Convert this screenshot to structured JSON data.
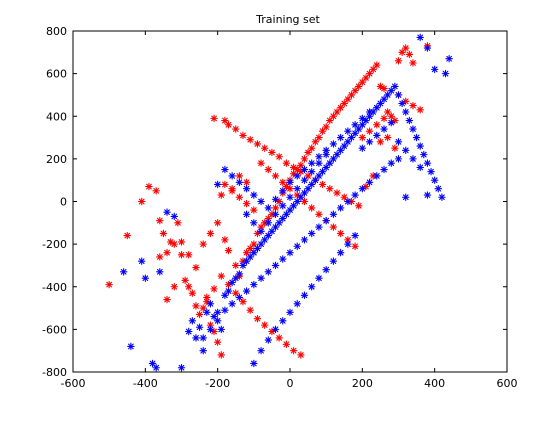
{
  "chart_data": {
    "type": "scatter",
    "title": "Training set",
    "xlabel": "",
    "ylabel": "",
    "xlim": [
      -600,
      600
    ],
    "ylim": [
      -800,
      800
    ],
    "xticks": [
      -600,
      -400,
      -200,
      0,
      200,
      400,
      600
    ],
    "yticks": [
      -800,
      -600,
      -400,
      -200,
      0,
      200,
      400,
      600,
      800
    ],
    "grid": false,
    "legend": "none",
    "marker": "*",
    "series": [
      {
        "color": "#ff0000",
        "points": [
          [
            -500,
            -390
          ],
          [
            -450,
            -160
          ],
          [
            -410,
            0
          ],
          [
            -390,
            70
          ],
          [
            -370,
            50
          ],
          [
            -360,
            -90
          ],
          [
            -350,
            -150
          ],
          [
            -330,
            -190
          ],
          [
            -320,
            -200
          ],
          [
            -310,
            -100
          ],
          [
            -300,
            -250
          ],
          [
            -290,
            -370
          ],
          [
            -280,
            -400
          ],
          [
            -270,
            -430
          ],
          [
            -260,
            -490
          ],
          [
            -250,
            -530
          ],
          [
            -240,
            -500
          ],
          [
            -230,
            -470
          ],
          [
            -220,
            -580
          ],
          [
            -210,
            -610
          ],
          [
            -200,
            -660
          ],
          [
            -190,
            -720
          ],
          [
            -360,
            -260
          ],
          [
            -340,
            -240
          ],
          [
            -200,
            -100
          ],
          [
            -180,
            -180
          ],
          [
            -170,
            -230
          ],
          [
            -150,
            -300
          ],
          [
            -140,
            -350
          ],
          [
            -130,
            -280
          ],
          [
            -120,
            -240
          ],
          [
            -110,
            -220
          ],
          [
            -100,
            -200
          ],
          [
            -90,
            -150
          ],
          [
            -80,
            -120
          ],
          [
            -70,
            -100
          ],
          [
            -60,
            -80
          ],
          [
            -50,
            -60
          ],
          [
            -40,
            -30
          ],
          [
            -30,
            0
          ],
          [
            -20,
            40
          ],
          [
            -10,
            70
          ],
          [
            0,
            100
          ],
          [
            10,
            130
          ],
          [
            20,
            150
          ],
          [
            30,
            170
          ],
          [
            40,
            200
          ],
          [
            50,
            230
          ],
          [
            60,
            250
          ],
          [
            70,
            280
          ],
          [
            80,
            300
          ],
          [
            90,
            330
          ],
          [
            100,
            350
          ],
          [
            110,
            380
          ],
          [
            120,
            400
          ],
          [
            130,
            420
          ],
          [
            140,
            440
          ],
          [
            150,
            460
          ],
          [
            160,
            480
          ],
          [
            170,
            500
          ],
          [
            180,
            520
          ],
          [
            190,
            540
          ],
          [
            200,
            560
          ],
          [
            210,
            580
          ],
          [
            220,
            600
          ],
          [
            230,
            620
          ],
          [
            240,
            640
          ],
          [
            250,
            540
          ],
          [
            260,
            530
          ],
          [
            270,
            420
          ],
          [
            280,
            400
          ],
          [
            290,
            380
          ],
          [
            300,
            660
          ],
          [
            310,
            700
          ],
          [
            320,
            720
          ],
          [
            330,
            690
          ],
          [
            340,
            650
          ],
          [
            380,
            730
          ],
          [
            -210,
            390
          ],
          [
            -180,
            380
          ],
          [
            -170,
            360
          ],
          [
            -150,
            340
          ],
          [
            -130,
            310
          ],
          [
            -110,
            290
          ],
          [
            -90,
            270
          ],
          [
            -70,
            250
          ],
          [
            -50,
            230
          ],
          [
            -30,
            210
          ],
          [
            -10,
            180
          ],
          [
            10,
            160
          ],
          [
            30,
            140
          ],
          [
            50,
            120
          ],
          [
            70,
            100
          ],
          [
            90,
            80
          ],
          [
            110,
            60
          ],
          [
            130,
            40
          ],
          [
            150,
            20
          ],
          [
            170,
            0
          ],
          [
            190,
            -20
          ],
          [
            210,
            70
          ],
          [
            230,
            120
          ],
          [
            250,
            280
          ],
          [
            270,
            300
          ],
          [
            290,
            250
          ],
          [
            -240,
            -200
          ],
          [
            -220,
            -150
          ],
          [
            -260,
            -310
          ],
          [
            -280,
            -250
          ],
          [
            -300,
            -190
          ],
          [
            -320,
            -400
          ],
          [
            -340,
            -460
          ],
          [
            -120,
            90
          ],
          [
            -140,
            120
          ],
          [
            -160,
            60
          ],
          [
            -190,
            30
          ],
          [
            -80,
            180
          ],
          [
            -60,
            150
          ],
          [
            -40,
            120
          ],
          [
            -20,
            90
          ],
          [
            0,
            60
          ],
          [
            20,
            30
          ],
          [
            40,
            0
          ],
          [
            60,
            -30
          ],
          [
            80,
            -60
          ],
          [
            100,
            -90
          ],
          [
            120,
            -120
          ],
          [
            140,
            -150
          ],
          [
            160,
            -180
          ],
          [
            180,
            -210
          ],
          [
            -190,
            -350
          ],
          [
            -210,
            -410
          ],
          [
            -230,
            -450
          ],
          [
            -170,
            -390
          ],
          [
            -150,
            -430
          ],
          [
            -130,
            -470
          ],
          [
            -110,
            -510
          ],
          [
            -90,
            -550
          ],
          [
            -70,
            -580
          ],
          [
            -50,
            -610
          ],
          [
            -30,
            -640
          ],
          [
            -10,
            -670
          ],
          [
            10,
            -700
          ],
          [
            30,
            -720
          ],
          [
            -100,
            -40
          ],
          [
            -120,
            -10
          ],
          [
            -140,
            20
          ],
          [
            -160,
            50
          ],
          [
            -180,
            80
          ],
          [
            300,
            500
          ],
          [
            320,
            470
          ],
          [
            340,
            450
          ],
          [
            360,
            430
          ],
          [
            200,
            300
          ],
          [
            220,
            330
          ],
          [
            240,
            360
          ],
          [
            260,
            390
          ]
        ]
      },
      {
        "color": "#0000ff",
        "points": [
          [
            -460,
            -330
          ],
          [
            -440,
            -680
          ],
          [
            -410,
            -280
          ],
          [
            -400,
            -360
          ],
          [
            -380,
            -760
          ],
          [
            -370,
            -780
          ],
          [
            -360,
            -330
          ],
          [
            -340,
            -50
          ],
          [
            -320,
            -70
          ],
          [
            -300,
            -780
          ],
          [
            -280,
            -610
          ],
          [
            -270,
            -560
          ],
          [
            -260,
            -640
          ],
          [
            -250,
            -590
          ],
          [
            -240,
            -700
          ],
          [
            -230,
            -520
          ],
          [
            -220,
            -480
          ],
          [
            -210,
            -540
          ],
          [
            -200,
            -560
          ],
          [
            -190,
            -600
          ],
          [
            -180,
            -440
          ],
          [
            -170,
            -420
          ],
          [
            -160,
            -380
          ],
          [
            -150,
            -360
          ],
          [
            -140,
            -340
          ],
          [
            -130,
            -300
          ],
          [
            -120,
            -280
          ],
          [
            -110,
            -260
          ],
          [
            -100,
            -240
          ],
          [
            -90,
            -220
          ],
          [
            -80,
            -200
          ],
          [
            -70,
            -180
          ],
          [
            -60,
            -160
          ],
          [
            -50,
            -140
          ],
          [
            -40,
            -120
          ],
          [
            -30,
            -100
          ],
          [
            -20,
            -80
          ],
          [
            -10,
            -60
          ],
          [
            0,
            -40
          ],
          [
            10,
            -20
          ],
          [
            20,
            0
          ],
          [
            30,
            20
          ],
          [
            40,
            40
          ],
          [
            50,
            60
          ],
          [
            60,
            80
          ],
          [
            70,
            100
          ],
          [
            80,
            120
          ],
          [
            90,
            140
          ],
          [
            100,
            160
          ],
          [
            110,
            180
          ],
          [
            120,
            200
          ],
          [
            130,
            220
          ],
          [
            140,
            240
          ],
          [
            150,
            260
          ],
          [
            160,
            280
          ],
          [
            170,
            300
          ],
          [
            180,
            320
          ],
          [
            190,
            340
          ],
          [
            200,
            360
          ],
          [
            210,
            380
          ],
          [
            220,
            400
          ],
          [
            230,
            420
          ],
          [
            240,
            440
          ],
          [
            250,
            460
          ],
          [
            260,
            480
          ],
          [
            270,
            500
          ],
          [
            280,
            520
          ],
          [
            290,
            540
          ],
          [
            300,
            500
          ],
          [
            310,
            460
          ],
          [
            320,
            420
          ],
          [
            330,
            380
          ],
          [
            340,
            340
          ],
          [
            350,
            300
          ],
          [
            360,
            260
          ],
          [
            370,
            220
          ],
          [
            380,
            180
          ],
          [
            390,
            140
          ],
          [
            400,
            100
          ],
          [
            410,
            60
          ],
          [
            420,
            20
          ],
          [
            430,
            600
          ],
          [
            440,
            670
          ],
          [
            360,
            770
          ],
          [
            380,
            720
          ],
          [
            400,
            620
          ],
          [
            380,
            30
          ],
          [
            320,
            20
          ],
          [
            300,
            200
          ],
          [
            280,
            180
          ],
          [
            260,
            150
          ],
          [
            240,
            120
          ],
          [
            220,
            90
          ],
          [
            200,
            60
          ],
          [
            180,
            30
          ],
          [
            160,
            0
          ],
          [
            140,
            -30
          ],
          [
            120,
            -60
          ],
          [
            100,
            -90
          ],
          [
            80,
            -120
          ],
          [
            60,
            -150
          ],
          [
            40,
            -180
          ],
          [
            20,
            -210
          ],
          [
            0,
            -240
          ],
          [
            -20,
            -270
          ],
          [
            -40,
            -300
          ],
          [
            -60,
            -330
          ],
          [
            -80,
            -360
          ],
          [
            -100,
            -390
          ],
          [
            -120,
            -420
          ],
          [
            -140,
            -450
          ],
          [
            -160,
            -480
          ],
          [
            -180,
            -510
          ],
          [
            -200,
            -520
          ],
          [
            -220,
            -600
          ],
          [
            -240,
            -640
          ],
          [
            -100,
            -760
          ],
          [
            -80,
            -700
          ],
          [
            -60,
            -650
          ],
          [
            -40,
            -600
          ],
          [
            -20,
            -560
          ],
          [
            0,
            -520
          ],
          [
            20,
            -480
          ],
          [
            40,
            -440
          ],
          [
            60,
            -400
          ],
          [
            80,
            -360
          ],
          [
            100,
            -320
          ],
          [
            120,
            -280
          ],
          [
            140,
            -240
          ],
          [
            160,
            -200
          ],
          [
            180,
            -160
          ],
          [
            -180,
            150
          ],
          [
            -200,
            80
          ],
          [
            -160,
            120
          ],
          [
            -140,
            90
          ],
          [
            -120,
            60
          ],
          [
            -100,
            30
          ],
          [
            -80,
            0
          ],
          [
            -60,
            -30
          ],
          [
            -40,
            10
          ],
          [
            -20,
            50
          ],
          [
            0,
            90
          ],
          [
            20,
            120
          ],
          [
            40,
            150
          ],
          [
            60,
            180
          ],
          [
            80,
            210
          ],
          [
            100,
            240
          ],
          [
            120,
            270
          ],
          [
            140,
            300
          ],
          [
            160,
            330
          ],
          [
            180,
            360
          ],
          [
            200,
            390
          ],
          [
            220,
            420
          ],
          [
            -120,
            -60
          ],
          [
            -100,
            -100
          ],
          [
            -80,
            -140
          ],
          [
            -60,
            -100
          ],
          [
            -40,
            -60
          ],
          [
            -20,
            -20
          ],
          [
            0,
            20
          ],
          [
            20,
            60
          ],
          [
            40,
            100
          ],
          [
            60,
            140
          ],
          [
            80,
            180
          ],
          [
            100,
            220
          ],
          [
            200,
            250
          ],
          [
            220,
            280
          ],
          [
            240,
            310
          ],
          [
            260,
            340
          ],
          [
            280,
            370
          ],
          [
            300,
            280
          ],
          [
            320,
            240
          ],
          [
            340,
            200
          ],
          [
            360,
            160
          ]
        ]
      }
    ]
  }
}
